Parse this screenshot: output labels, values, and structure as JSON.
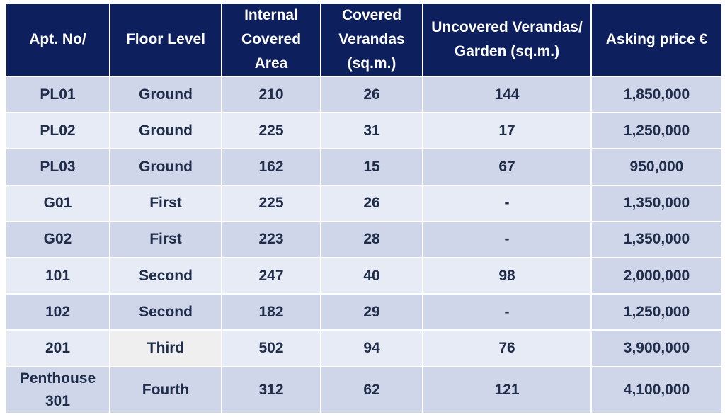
{
  "table": {
    "headers": [
      "Apt. No/",
      "Floor Level",
      "Internal Covered Area",
      "Covered Verandas (sq.m.)",
      "Uncovered Verandas/ Garden (sq.m.)",
      "Asking price €"
    ],
    "rows": [
      [
        "PL01",
        "Ground",
        "210",
        "26",
        "144",
        "1,850,000"
      ],
      [
        "PL02",
        "Ground",
        "225",
        "31",
        "17",
        "1,250,000"
      ],
      [
        "PL03",
        "Ground",
        "162",
        "15",
        "67",
        "950,000"
      ],
      [
        "G01",
        "First",
        "225",
        "26",
        "-",
        "1,350,000"
      ],
      [
        "G02",
        "First",
        "223",
        "28",
        "-",
        "1,350,000"
      ],
      [
        "101",
        "Second",
        "247",
        "40",
        "98",
        "2,000,000"
      ],
      [
        "102",
        "Second",
        "182",
        "29",
        "-",
        "1,250,000"
      ],
      [
        "201",
        "Third",
        "502",
        "94",
        "76",
        "3,900,000"
      ],
      [
        "Penthouse 301",
        "Fourth",
        "312",
        "62",
        "121",
        "4,100,000"
      ]
    ]
  },
  "colors": {
    "header_bg": "#0d1f5c",
    "row_dark": "#cfd6ea",
    "row_light": "#e7ebf5",
    "text": "#1f2d4a"
  }
}
